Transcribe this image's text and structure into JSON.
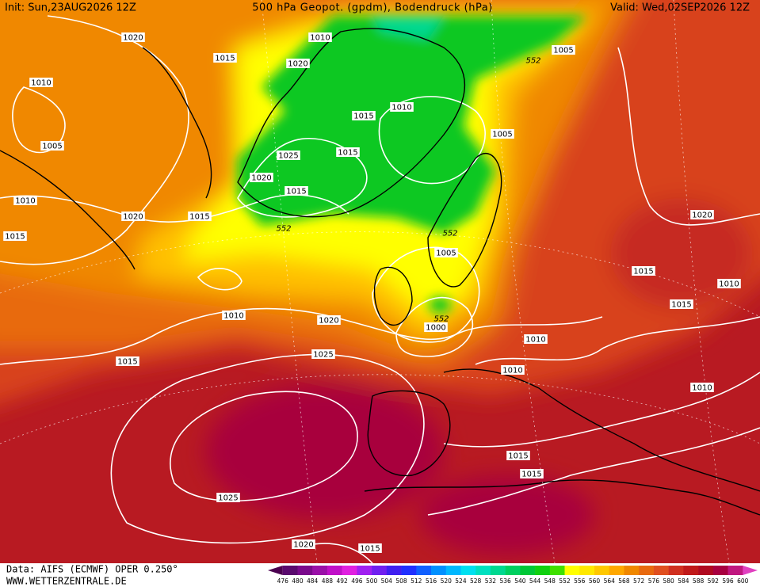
{
  "header": {
    "init": "Init: Sun,23AUG2026 12Z",
    "title": "500 hPa Geopot. (gpdm), Bodendruck (hPa)",
    "valid": "Valid: Wed,02SEP2026 12Z"
  },
  "map": {
    "contour_labels": [
      1020,
      1010,
      1015,
      1020,
      1010,
      1005,
      552,
      1010,
      1015,
      1005,
      1015,
      1025,
      1005,
      1020,
      1015,
      1010,
      1020,
      1015,
      1020,
      552,
      552,
      1015,
      1005,
      1015,
      1010,
      1015,
      1010,
      1020,
      552,
      1000,
      1010,
      1025,
      1010,
      1015,
      1010,
      1015,
      1015,
      1025,
      1020,
      1015
    ]
  },
  "colorbar": {
    "labels": [
      476,
      480,
      484,
      488,
      492,
      496,
      500,
      504,
      508,
      512,
      516,
      520,
      524,
      528,
      532,
      536,
      540,
      544,
      548,
      552,
      556,
      560,
      564,
      568,
      572,
      576,
      580,
      584,
      588,
      592,
      596,
      600
    ],
    "colors": [
      "#4b0050",
      "#5a0a6e",
      "#7a0a8c",
      "#9a10a8",
      "#c010c8",
      "#e020e0",
      "#a020f0",
      "#7020f0",
      "#4020f0",
      "#2030ff",
      "#1060ff",
      "#0090ff",
      "#00b8ff",
      "#00e0f0",
      "#00e0c0",
      "#00d890",
      "#00d060",
      "#00c838",
      "#10d010",
      "#40e000",
      "#ffff00",
      "#ffe800",
      "#ffc800",
      "#ffa800",
      "#f08800",
      "#e86a10",
      "#e05020",
      "#d03020",
      "#c01a1a",
      "#b00a20",
      "#a80040",
      "#c01880",
      "#e040c0"
    ]
  },
  "footer": {
    "source": "Data: AIFS (ECMWF) OPER 0.250°",
    "site": "WWW.WETTERZENTRALE.DE"
  }
}
